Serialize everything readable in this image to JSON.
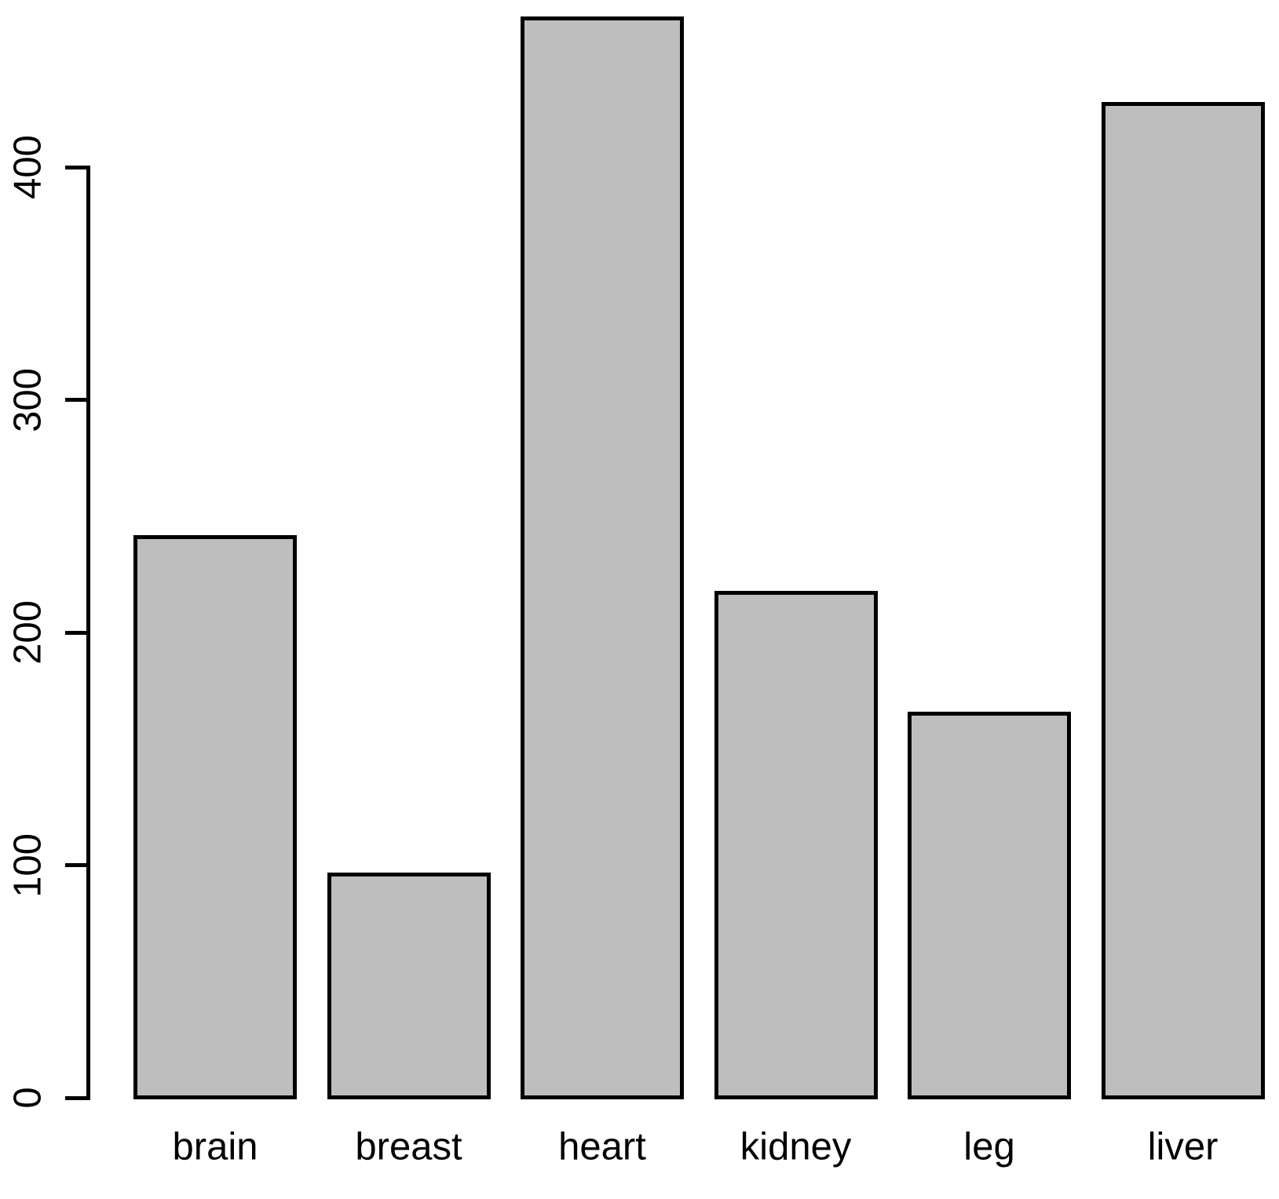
{
  "chart_data": {
    "type": "bar",
    "title": "",
    "xlabel": "",
    "ylabel": "",
    "categories": [
      "brain",
      "breast",
      "heart",
      "kidney",
      "leg",
      "liver"
    ],
    "values": [
      241,
      96,
      464,
      217,
      165,
      427
    ],
    "yticks": [
      0,
      100,
      200,
      300,
      400
    ],
    "ylim": [
      0,
      470
    ],
    "grid": false,
    "legend_position": "none",
    "bar_fill_color": "#BEBEBE",
    "bar_border_color": "#000000",
    "axis_color": "#000000",
    "text_color": "#000000"
  }
}
